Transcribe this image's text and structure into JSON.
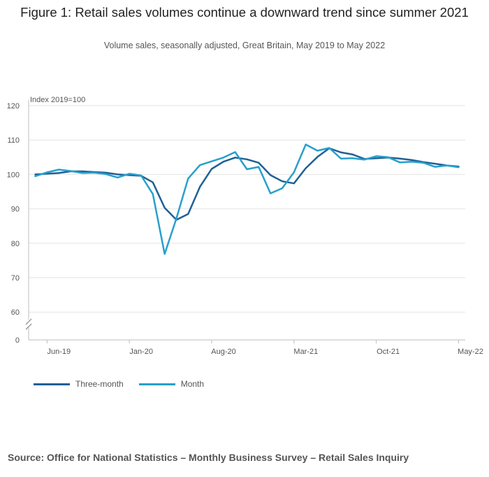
{
  "chart_data": {
    "type": "line",
    "title": "Figure 1: Retail sales volumes continue a downward trend since summer 2021",
    "subtitle": "Volume sales, seasonally adjusted, Great Britain, May 2019 to May 2022",
    "ylabel": "Index 2019=100",
    "ylim": [
      0,
      120
    ],
    "y_ticks": [
      "120",
      "110",
      "100",
      "90",
      "80",
      "70",
      "60",
      "0"
    ],
    "x_tick_labels": [
      "Jun-19",
      "Jan-20",
      "Aug-20",
      "Mar-21",
      "Oct-21",
      "May-22"
    ],
    "x_tick_indices": [
      1,
      8,
      15,
      22,
      29,
      36
    ],
    "months": [
      "May-19",
      "Jun-19",
      "Jul-19",
      "Aug-19",
      "Sep-19",
      "Oct-19",
      "Nov-19",
      "Dec-19",
      "Jan-20",
      "Feb-20",
      "Mar-20",
      "Apr-20",
      "May-20",
      "Jun-20",
      "Jul-20",
      "Aug-20",
      "Sep-20",
      "Oct-20",
      "Nov-20",
      "Dec-20",
      "Jan-21",
      "Feb-21",
      "Mar-21",
      "Apr-21",
      "May-21",
      "Jun-21",
      "Jul-21",
      "Aug-21",
      "Sep-21",
      "Oct-21",
      "Nov-21",
      "Dec-21",
      "Jan-22",
      "Feb-22",
      "Mar-22",
      "Apr-22",
      "May-22"
    ],
    "series": [
      {
        "name": "Three-month",
        "color": "#206095",
        "values": [
          100.0,
          100.2,
          100.4,
          100.9,
          100.9,
          100.7,
          100.5,
          100.0,
          99.8,
          99.6,
          97.7,
          90.3,
          86.8,
          88.5,
          96.4,
          101.6,
          103.7,
          104.9,
          104.4,
          103.4,
          99.8,
          98.0,
          97.4,
          101.8,
          105.1,
          107.6,
          106.4,
          105.8,
          104.5,
          104.7,
          104.9,
          104.6,
          104.2,
          103.6,
          103.1,
          102.6,
          102.3
        ]
      },
      {
        "name": "Month",
        "color": "#27a0cc",
        "values": [
          99.5,
          100.6,
          101.4,
          101.0,
          100.4,
          100.5,
          100.1,
          99.1,
          100.2,
          99.7,
          94.3,
          76.9,
          87.2,
          98.8,
          102.7,
          103.8,
          104.9,
          106.5,
          101.5,
          102.2,
          94.5,
          96.0,
          100.6,
          108.7,
          106.9,
          107.7,
          104.6,
          104.7,
          104.3,
          105.3,
          105.0,
          103.5,
          103.7,
          103.4,
          102.2,
          102.6,
          102.1
        ]
      }
    ]
  },
  "source": "Source: Office for National Statistics – Monthly Business Survey – Retail Sales Inquiry"
}
